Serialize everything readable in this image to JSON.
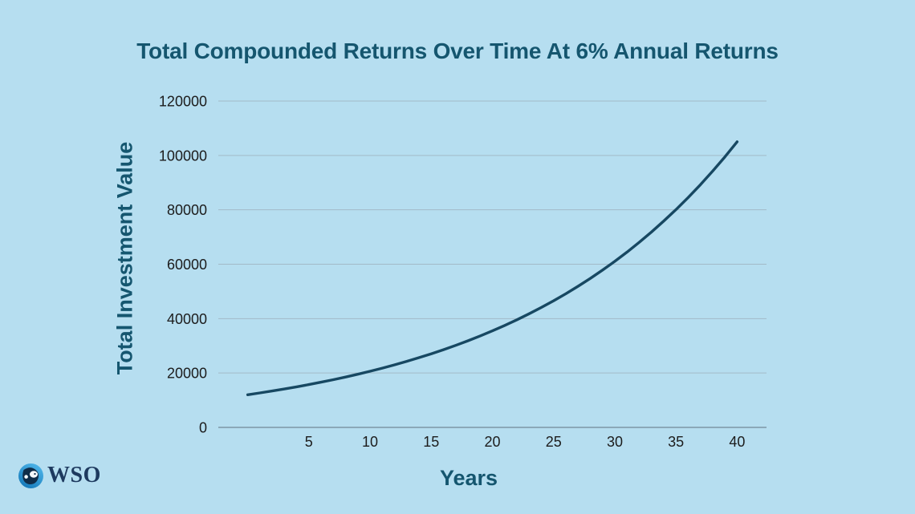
{
  "title": "Total Compounded Returns Over Time At 6% Annual Returns",
  "logo": {
    "text": "WSO",
    "icon": "wso-globe-icon"
  },
  "colors": {
    "background": "#b6def0",
    "title_text": "#15566f",
    "tick_text": "#1c1c1c",
    "gridline": "#a2bac8",
    "axis_line": "#7d96a6",
    "line": "#174862",
    "logo_text": "#1e3a5f",
    "logo_circle_light": "#45b0e6",
    "logo_circle_dark": "#0f2d49"
  },
  "chart_data": {
    "type": "line",
    "title": "Total Compounded Returns Over Time At 6% Annual Returns",
    "xlabel": "Years",
    "ylabel": "Total Investment Value",
    "annual_return_pct_from_title": 6,
    "x_ticks": [
      5,
      10,
      15,
      20,
      25,
      30,
      35,
      40
    ],
    "y_ticks": [
      0,
      20000,
      40000,
      60000,
      80000,
      100000,
      120000
    ],
    "xlim": [
      -2.4,
      42.4
    ],
    "ylim": [
      0,
      120000
    ],
    "grid": "horizontal-only",
    "legend": "none",
    "series": [
      {
        "name": "Total Investment Value",
        "x": [
          0,
          1,
          2,
          3,
          4,
          5,
          6,
          7,
          8,
          9,
          10,
          11,
          12,
          13,
          14,
          15,
          16,
          17,
          18,
          19,
          20,
          21,
          22,
          23,
          24,
          25,
          26,
          27,
          28,
          29,
          30,
          31,
          32,
          33,
          34,
          35,
          36,
          37,
          38,
          39,
          40
        ],
        "y": [
          12000,
          12670,
          13380,
          14120,
          14910,
          15740,
          16620,
          17540,
          18520,
          19550,
          20640,
          21790,
          23000,
          24290,
          25640,
          27070,
          28580,
          30170,
          31850,
          33630,
          35500,
          37480,
          39570,
          41770,
          44100,
          46560,
          49150,
          51890,
          54780,
          57840,
          61060,
          64460,
          68050,
          71850,
          75850,
          80080,
          84540,
          89250,
          94230,
          99480,
          105020
        ]
      }
    ]
  }
}
